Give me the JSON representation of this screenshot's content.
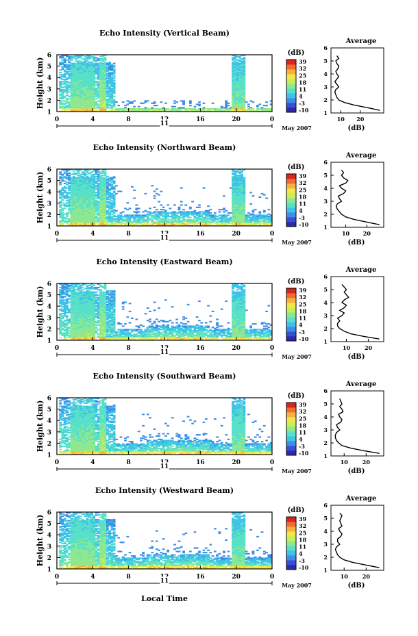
{
  "figure": {
    "xlabel": "Local Time",
    "date_label": "May 2007",
    "day_label": "11",
    "colorbar_unit": "(dB)",
    "colorbar_ticks": [
      "39",
      "32",
      "25",
      "18",
      "11",
      "4",
      "-3",
      "-10"
    ],
    "avg_title": "Average",
    "avg_xlabel": "(dB)",
    "colormap": [
      "#2b2aa8",
      "#3a4fd6",
      "#3d8ee6",
      "#3fc2e8",
      "#59e0c8",
      "#8fe88f",
      "#c8ee5a",
      "#f3e64a",
      "#f7b13e",
      "#f26b30",
      "#d8261e"
    ]
  },
  "chart_data": [
    {
      "type": "heatmap",
      "title": "Echo Intensity (Vertical Beam)",
      "ylabel": "Height (km)",
      "xlim": [
        0,
        24
      ],
      "ylim": [
        1,
        6
      ],
      "xticks": [
        "0",
        "4",
        "8",
        "12",
        "16",
        "20",
        "0"
      ],
      "yticks": [
        "1",
        "2",
        "3",
        "4",
        "5",
        "6"
      ],
      "colorbar": {
        "min": -10,
        "max": 39
      },
      "average_profile": {
        "xticks": [
          "10",
          "20"
        ],
        "xlim": [
          5,
          32
        ],
        "height": [
          1.2,
          1.4,
          1.6,
          1.8,
          2.0,
          2.2,
          2.4,
          2.6,
          2.8,
          3.0,
          3.2,
          3.4,
          3.6,
          3.8,
          4.0,
          4.2,
          4.4,
          4.6,
          4.8,
          5.0,
          5.2,
          5.4
        ],
        "db": [
          30,
          24,
          17,
          12,
          9,
          8,
          7.5,
          7,
          7.5,
          9,
          8,
          7,
          8,
          9,
          8,
          7.5,
          8.5,
          9,
          8,
          7.5,
          9,
          8
        ]
      }
    },
    {
      "type": "heatmap",
      "title": "Echo Intensity (Northward Beam)",
      "ylabel": "Height (km)",
      "xlim": [
        0,
        24
      ],
      "ylim": [
        1,
        6
      ],
      "xticks": [
        "0",
        "4",
        "8",
        "12",
        "16",
        "20",
        "0"
      ],
      "yticks": [
        "1",
        "2",
        "3",
        "4",
        "5",
        "6"
      ],
      "colorbar": {
        "min": -10,
        "max": 39
      },
      "average_profile": {
        "xticks": [
          "10",
          "20"
        ],
        "xlim": [
          3,
          28
        ],
        "height": [
          1.2,
          1.4,
          1.6,
          1.8,
          2.0,
          2.2,
          2.4,
          2.6,
          2.8,
          3.0,
          3.2,
          3.4,
          3.6,
          3.8,
          4.0,
          4.2,
          4.4,
          4.6,
          4.8,
          5.0,
          5.2,
          5.4
        ],
        "db": [
          26,
          20,
          14,
          10,
          8,
          7,
          6,
          5.5,
          6,
          8,
          7,
          6.5,
          9,
          10,
          8,
          7,
          10,
          11,
          9,
          8,
          9,
          8
        ]
      }
    },
    {
      "type": "heatmap",
      "title": "Echo Intensity (Eastward Beam)",
      "ylabel": "Height (km)",
      "xlim": [
        0,
        24
      ],
      "ylim": [
        1,
        6
      ],
      "xticks": [
        "0",
        "4",
        "8",
        "12",
        "16",
        "20",
        "0"
      ],
      "yticks": [
        "1",
        "2",
        "3",
        "4",
        "5",
        "6"
      ],
      "colorbar": {
        "min": -10,
        "max": 39
      },
      "average_profile": {
        "xticks": [
          "10",
          "20"
        ],
        "xlim": [
          3,
          27
        ],
        "height": [
          1.2,
          1.4,
          1.6,
          1.8,
          2.0,
          2.2,
          2.4,
          2.6,
          2.8,
          3.0,
          3.2,
          3.4,
          3.6,
          3.8,
          4.0,
          4.2,
          4.4,
          4.6,
          4.8,
          5.0,
          5.2,
          5.4
        ],
        "db": [
          25,
          18,
          12,
          9,
          7,
          6,
          6,
          7,
          6,
          8,
          9,
          7,
          9,
          10,
          8,
          9,
          11,
          10,
          9,
          10,
          9,
          8
        ]
      }
    },
    {
      "type": "heatmap",
      "title": "Echo Intensity (Southward Beam)",
      "ylabel": "Height (km)",
      "xlim": [
        0,
        24
      ],
      "ylim": [
        1,
        6
      ],
      "xticks": [
        "0",
        "4",
        "8",
        "12",
        "16",
        "20",
        "0"
      ],
      "yticks": [
        "1",
        "2",
        "3",
        "4",
        "5",
        "6"
      ],
      "colorbar": {
        "min": -10,
        "max": 39
      },
      "average_profile": {
        "xticks": [
          "10",
          "20"
        ],
        "xlim": [
          4,
          28
        ],
        "height": [
          1.2,
          1.4,
          1.6,
          1.8,
          2.0,
          2.2,
          2.4,
          2.6,
          2.8,
          3.0,
          3.2,
          3.4,
          3.6,
          3.8,
          4.0,
          4.2,
          4.4,
          4.6,
          4.8,
          5.0,
          5.2,
          5.4
        ],
        "db": [
          26,
          19,
          13,
          9,
          7.5,
          6.5,
          6,
          6,
          6.5,
          8,
          7,
          6.5,
          8.5,
          9,
          8,
          7.5,
          9.5,
          9,
          8,
          9,
          8.5,
          8
        ]
      }
    },
    {
      "type": "heatmap",
      "title": "Echo Intensity (Westward Beam)",
      "ylabel": "Height (km)",
      "xlim": [
        0,
        24
      ],
      "ylim": [
        1,
        6
      ],
      "xticks": [
        "0",
        "4",
        "8",
        "12",
        "16",
        "20",
        "0"
      ],
      "yticks": [
        "1",
        "2",
        "3",
        "4",
        "5",
        "6"
      ],
      "colorbar": {
        "min": -10,
        "max": 39
      },
      "average_profile": {
        "xticks": [
          "10",
          "20"
        ],
        "xlim": [
          4,
          28
        ],
        "height": [
          1.2,
          1.4,
          1.6,
          1.8,
          2.0,
          2.2,
          2.4,
          2.6,
          2.8,
          3.0,
          3.2,
          3.4,
          3.6,
          3.8,
          4.0,
          4.2,
          4.4,
          4.6,
          4.8,
          5.0,
          5.2,
          5.4
        ],
        "db": [
          26,
          20,
          14,
          10,
          8,
          7,
          6.5,
          6,
          6.5,
          8,
          7,
          7,
          8.5,
          9,
          8,
          7.5,
          9,
          8.5,
          8,
          8.5,
          9,
          8
        ]
      }
    }
  ]
}
